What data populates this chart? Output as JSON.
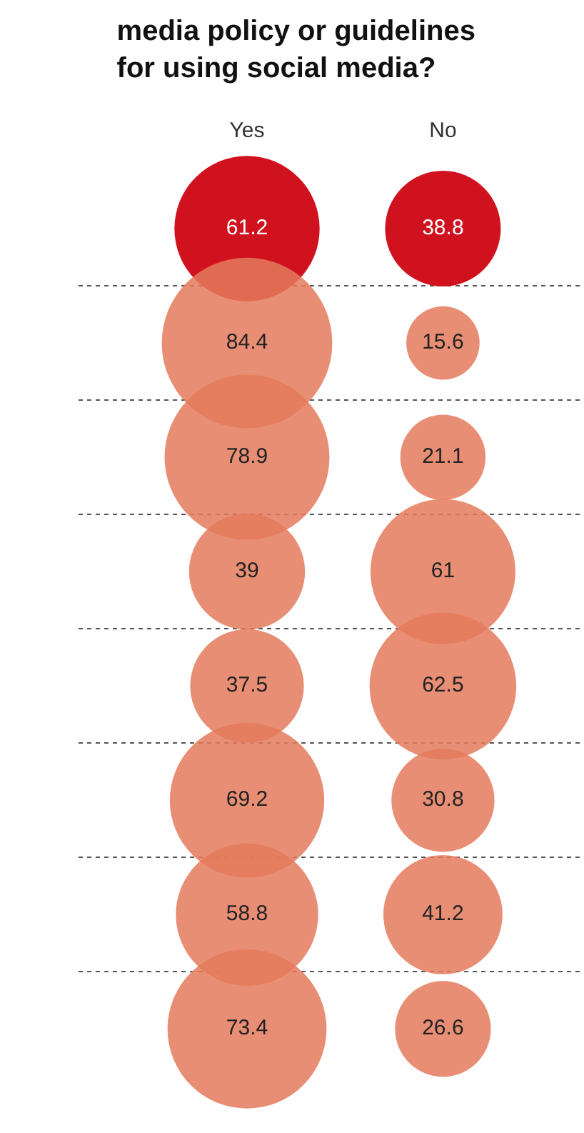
{
  "chart_data": {
    "type": "other",
    "title": "media policy or guidelines\nfor using social media?",
    "categories": [
      "Yes",
      "No"
    ],
    "y_categories": [
      null,
      null,
      null,
      null,
      null,
      null,
      null,
      null
    ],
    "series": [
      {
        "color": "#d0121f",
        "values": [
          61.2,
          38.8
        ]
      },
      {
        "color": "#e47a5c",
        "values": [
          84.4,
          15.6
        ]
      },
      {
        "color": "#e47a5c",
        "values": [
          78.9,
          21.1
        ]
      },
      {
        "color": "#e47a5c",
        "values": [
          39,
          61
        ]
      },
      {
        "color": "#e47a5c",
        "values": [
          37.5,
          62.5
        ]
      },
      {
        "color": "#e47a5c",
        "values": [
          69.2,
          30.8
        ]
      },
      {
        "color": "#e47a5c",
        "values": [
          58.8,
          41.2
        ]
      },
      {
        "color": "#e47a5c",
        "values": [
          73.4,
          26.6
        ]
      }
    ],
    "data_labels": true
  }
}
